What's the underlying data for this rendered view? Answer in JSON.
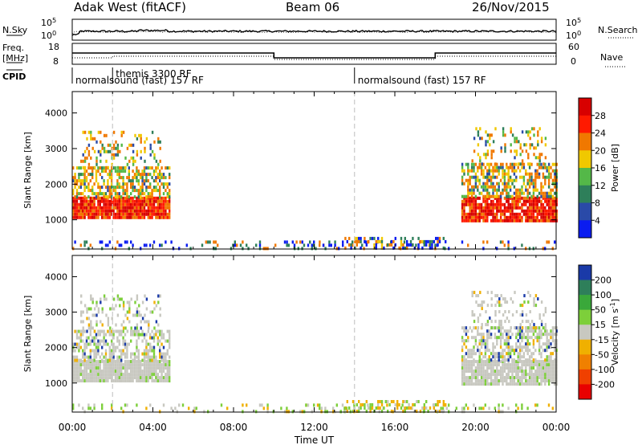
{
  "header": {
    "station": "Adak West (fitACF)",
    "beam": "Beam 06",
    "date": "26/Nov/2015"
  },
  "labels": {
    "nsky": "N.Sky",
    "nsearch": "N.Search",
    "freq_line1": "Freq.",
    "freq_line2": "[MHz]",
    "nave": "Nave",
    "cpid": "CPID",
    "pow_exp_top": "10^5",
    "pow_exp_bot": "10^0",
    "freq_top": "18",
    "freq_bot": "8",
    "nave_top": "60",
    "nave_bot": "0"
  },
  "cpid_segments": [
    {
      "text": "normalsound (fast) 157 RF",
      "start_hour": 0
    },
    {
      "text": "themis 3300 RF",
      "start_hour": 2.0
    },
    {
      "text": "normalsound (fast) 157 RF",
      "start_hour": 14
    }
  ],
  "x_axis": {
    "label": "Time UT",
    "ticks": [
      "00:00",
      "04:00",
      "08:00",
      "12:00",
      "16:00",
      "20:00",
      "00:00"
    ]
  },
  "chart_data": [
    {
      "type": "heatmap",
      "name": "power",
      "ylabel": "Slant Range [km]",
      "yticks": [
        "1000",
        "2000",
        "3000",
        "4000"
      ],
      "ylim": [
        180,
        4600
      ],
      "xlim": [
        0,
        24
      ],
      "colorbar": {
        "label": "Power [dB]",
        "ticks": [
          "4",
          "8",
          "12",
          "16",
          "20",
          "24",
          "28"
        ],
        "colors": [
          "#0a1cf0",
          "#2a4aa8",
          "#2e7f5a",
          "#54b848",
          "#f0c800",
          "#f07800",
          "#ff1a00",
          "#d80000"
        ]
      }
    },
    {
      "type": "heatmap",
      "name": "velocity",
      "ylabel": "Slant Range [km]",
      "yticks": [
        "1000",
        "2000",
        "3000",
        "4000"
      ],
      "ylim": [
        180,
        4600
      ],
      "xlim": [
        0,
        24
      ],
      "colorbar": {
        "label": "Velocity [m s^-1]",
        "ticks": [
          "200",
          "100",
          "50",
          "15",
          "-15",
          "-50",
          "-100",
          "-200"
        ],
        "colors": [
          "#1a3aa8",
          "#2e7f5a",
          "#3aa83a",
          "#7dcf3a",
          "#c8c8c0",
          "#f0b000",
          "#f08000",
          "#f04000",
          "#e80000"
        ]
      }
    }
  ]
}
